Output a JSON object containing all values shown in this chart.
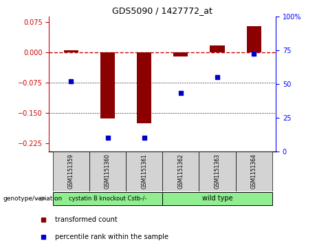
{
  "title": "GDS5090 / 1427772_at",
  "samples": [
    "GSM1151359",
    "GSM1151360",
    "GSM1151361",
    "GSM1151362",
    "GSM1151363",
    "GSM1151364"
  ],
  "red_values": [
    0.005,
    -0.163,
    -0.175,
    -0.01,
    0.018,
    0.065
  ],
  "blue_values_pct": [
    52,
    10,
    10,
    43,
    55,
    72
  ],
  "ylim_left": [
    -0.245,
    0.09
  ],
  "ylim_right": [
    0,
    100
  ],
  "yticks_left": [
    0.075,
    0,
    -0.075,
    -0.15,
    -0.225
  ],
  "yticks_right": [
    100,
    75,
    50,
    25,
    0
  ],
  "group1_label": "cystatin B knockout Cstb-/-",
  "group2_label": "wild type",
  "group1_indices": [
    0,
    1,
    2
  ],
  "group2_indices": [
    3,
    4,
    5
  ],
  "group1_color": "#90EE90",
  "group2_color": "#90EE90",
  "bar_color": "#8B0000",
  "dot_color": "#0000CD",
  "legend_red": "transformed count",
  "legend_blue": "percentile rank within the sample",
  "xlabel_label": "genotype/variation",
  "background_gray": "#D3D3D3",
  "hline_color": "#CC0000",
  "dotted_line_color": "#000000"
}
